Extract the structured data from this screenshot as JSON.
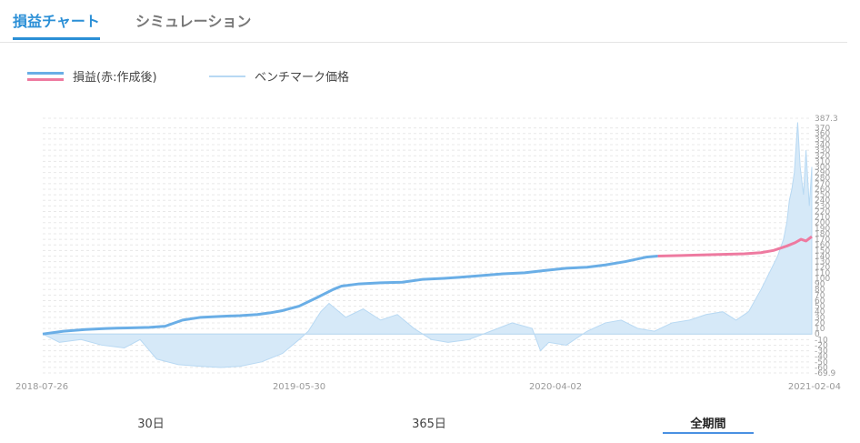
{
  "tabs": [
    {
      "label": "損益チャート",
      "active": true
    },
    {
      "label": "シミュレーション",
      "active": false
    }
  ],
  "legend": [
    {
      "label": "損益(赤:作成後)"
    },
    {
      "label": "ベンチマーク価格"
    }
  ],
  "periods": [
    {
      "label": "30日",
      "active": false
    },
    {
      "label": "365日",
      "active": false
    },
    {
      "label": "全期間",
      "active": true
    }
  ],
  "colors": {
    "accent": "#2b8fd6",
    "pnl_before": "#6aaee6",
    "pnl_after": "#ee7aa0",
    "benchmark_fill": "#d6e9f8",
    "benchmark_line": "#b8d9f3"
  },
  "chart_data": {
    "type": "line",
    "x_axis_ticks": [
      "2018-07-26",
      "2019-05-30",
      "2020-04-02",
      "2021-02-04"
    ],
    "y_range": [
      -69.9,
      387.3
    ],
    "y_ticks_printed": [
      387.3,
      370,
      360,
      350,
      340,
      330,
      320,
      310,
      300,
      290,
      280,
      270,
      260,
      250,
      240,
      230,
      220,
      210,
      200,
      190,
      180,
      170,
      160,
      150,
      140,
      130,
      120,
      110,
      100,
      90,
      80,
      70,
      60,
      50,
      40,
      30,
      20,
      10,
      0,
      -10,
      -20,
      -30,
      -40,
      -50,
      -60,
      -69.9
    ],
    "grid": true,
    "legend_position": "top-left",
    "series": [
      {
        "name": "損益(赤:作成後)",
        "segment": "before",
        "x": [
          "2018-07-26",
          "2018-08-20",
          "2018-09-15",
          "2018-10-10",
          "2018-11-05",
          "2018-12-01",
          "2018-12-20",
          "2019-01-10",
          "2019-02-01",
          "2019-03-01",
          "2019-03-20",
          "2019-04-10",
          "2019-04-25",
          "2019-05-10",
          "2019-05-30",
          "2019-06-20",
          "2019-07-10",
          "2019-07-20",
          "2019-08-10",
          "2019-09-05",
          "2019-10-01",
          "2019-10-25",
          "2019-11-20",
          "2019-12-10",
          "2020-01-05",
          "2020-01-30",
          "2020-02-25",
          "2020-03-20",
          "2020-04-15",
          "2020-05-10",
          "2020-06-01",
          "2020-06-25",
          "2020-07-20",
          "2020-08-03"
        ],
        "values": [
          0,
          5,
          8,
          10,
          11,
          12,
          14,
          25,
          30,
          32,
          33,
          35,
          38,
          42,
          50,
          65,
          80,
          86,
          90,
          92,
          93,
          98,
          100,
          102,
          105,
          108,
          110,
          114,
          118,
          120,
          124,
          130,
          138,
          140
        ]
      },
      {
        "name": "損益(赤:作成後)",
        "segment": "after",
        "x": [
          "2020-08-03",
          "2020-09-01",
          "2020-09-25",
          "2020-10-20",
          "2020-11-15",
          "2020-12-05",
          "2020-12-20",
          "2021-01-05",
          "2021-01-15",
          "2021-01-22",
          "2021-01-28",
          "2021-02-04"
        ],
        "values": [
          140,
          141,
          142,
          143,
          144,
          146,
          150,
          158,
          164,
          170,
          167,
          175
        ]
      },
      {
        "name": "ベンチマーク価格",
        "x": [
          "2018-07-26",
          "2018-08-15",
          "2018-09-10",
          "2018-10-05",
          "2018-11-01",
          "2018-11-20",
          "2018-12-10",
          "2019-01-05",
          "2019-02-01",
          "2019-02-25",
          "2019-03-20",
          "2019-04-15",
          "2019-05-10",
          "2019-05-30",
          "2019-06-10",
          "2019-06-25",
          "2019-07-05",
          "2019-07-25",
          "2019-08-15",
          "2019-09-05",
          "2019-09-25",
          "2019-10-15",
          "2019-11-05",
          "2019-11-25",
          "2019-12-20",
          "2020-01-15",
          "2020-02-10",
          "2020-03-05",
          "2020-03-15",
          "2020-03-25",
          "2020-04-15",
          "2020-05-10",
          "2020-06-01",
          "2020-06-20",
          "2020-07-10",
          "2020-07-30",
          "2020-08-20",
          "2020-09-10",
          "2020-09-30",
          "2020-10-20",
          "2020-11-05",
          "2020-11-20",
          "2020-12-05",
          "2020-12-15",
          "2020-12-25",
          "2021-01-01",
          "2021-01-05",
          "2021-01-08",
          "2021-01-11",
          "2021-01-14",
          "2021-01-18",
          "2021-01-21",
          "2021-01-25",
          "2021-01-28",
          "2021-02-01",
          "2021-02-04"
        ],
        "values": [
          0,
          -15,
          -10,
          -20,
          -25,
          -10,
          -45,
          -55,
          -58,
          -60,
          -58,
          -50,
          -35,
          -10,
          5,
          40,
          55,
          30,
          45,
          25,
          35,
          10,
          -10,
          -15,
          -10,
          5,
          20,
          10,
          -30,
          -15,
          -20,
          5,
          20,
          25,
          10,
          5,
          20,
          25,
          35,
          40,
          25,
          40,
          80,
          110,
          140,
          170,
          200,
          240,
          260,
          290,
          380,
          300,
          250,
          330,
          230,
          300
        ]
      }
    ]
  }
}
